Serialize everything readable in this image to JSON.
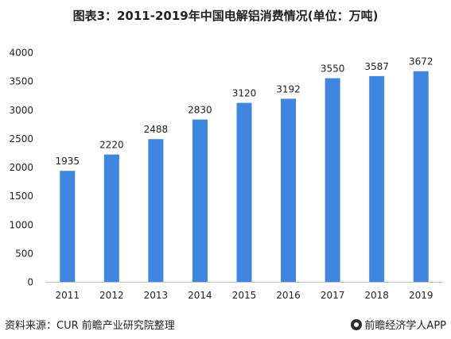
{
  "title": "图表3：2011-2019年中国电解铝消费情况(单位：万吨)",
  "source": "资料来源：CUR 前瞻产业研究院整理",
  "brand": "前瞻经济学人APP",
  "colors": {
    "bar": "#3f86e0",
    "axis": "#bfbfbf",
    "text": "#222222"
  },
  "chart_data": {
    "type": "bar",
    "categories": [
      "2011",
      "2012",
      "2013",
      "2014",
      "2015",
      "2016",
      "2017",
      "2018",
      "2019"
    ],
    "values": [
      1935,
      2220,
      2488,
      2830,
      3120,
      3192,
      3550,
      3587,
      3672
    ],
    "yticks": [
      0,
      500,
      1000,
      1500,
      2000,
      2500,
      3000,
      3500,
      4000
    ],
    "ylim": [
      0,
      4000
    ],
    "grid": false,
    "legend": "none",
    "xlabel": "",
    "ylabel": ""
  }
}
